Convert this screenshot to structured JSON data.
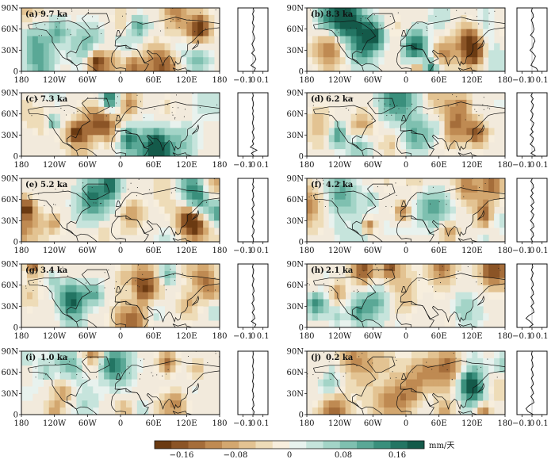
{
  "chart_data": {
    "type": "heatmap",
    "unit_label": "mm/天",
    "map_axes": {
      "x_ticks": [
        "180",
        "120W",
        "60W",
        "0",
        "60E",
        "120E",
        "180"
      ],
      "y_ticks": [
        "0",
        "30N",
        "60N",
        "90N"
      ],
      "xlim": [
        -180,
        180
      ],
      "ylim": [
        0,
        90
      ]
    },
    "profile_axes": {
      "x_ticks": [
        "−0.1",
        "0",
        "0.1"
      ],
      "xlim": [
        -0.15,
        0.15
      ]
    },
    "colorbar": {
      "ticks": [
        "−0.16",
        "−0.08",
        "0",
        "0.08",
        "0.16"
      ],
      "range": [
        -0.2,
        0.2
      ],
      "colors": [
        "#6b3a12",
        "#8b5426",
        "#a56d3a",
        "#bf8a52",
        "#d3a76f",
        "#e3c392",
        "#eedcb8",
        "#f7eedd",
        "#e8f2ee",
        "#c6e4dc",
        "#a3d4c7",
        "#7fc0b0",
        "#5aa896",
        "#3a8f7c",
        "#237563",
        "#145a4a"
      ]
    },
    "panels": [
      {
        "label": "(a)",
        "time": "9.7 ka",
        "seed": 11,
        "profile": [
          0.002,
          0.01,
          -0.004,
          0.008,
          0.003,
          -0.006,
          0.012,
          0.005,
          -0.003,
          0.009,
          0.018,
          0.006,
          -0.01,
          0.004,
          0.015,
          -0.012,
          0.02,
          0.03,
          0.012,
          -0.02,
          0.025,
          0.01
        ]
      },
      {
        "label": "(b)",
        "time": "8.3 ka",
        "seed": 23,
        "profile": [
          0.004,
          -0.006,
          0.01,
          0.015,
          -0.008,
          0.006,
          0.012,
          0.02,
          0.01,
          -0.015,
          0.018,
          0.03,
          0.012,
          0.008,
          -0.02,
          0.01,
          0.035,
          0.022,
          0.005,
          -0.01,
          0.045,
          0.06
        ]
      },
      {
        "label": "(c)",
        "time": "7.3 ka",
        "seed": 37,
        "profile": [
          -0.003,
          0.004,
          -0.008,
          0.002,
          0.006,
          -0.005,
          0.003,
          -0.004,
          0.008,
          0.002,
          -0.006,
          0.004,
          0.01,
          -0.008,
          0.005,
          0.012,
          -0.006,
          0.008,
          -0.025,
          0.04,
          -0.015,
          0.01
        ]
      },
      {
        "label": "(d)",
        "time": "6.2 ka",
        "seed": 41,
        "profile": [
          0.005,
          -0.01,
          0.012,
          -0.008,
          0.015,
          0.006,
          -0.012,
          0.01,
          0.004,
          -0.015,
          0.018,
          0.008,
          -0.01,
          0.012,
          -0.02,
          0.014,
          0.006,
          -0.018,
          0.02,
          0.03,
          -0.01,
          0.04
        ]
      },
      {
        "label": "(e)",
        "time": "5.2 ka",
        "seed": 53,
        "profile": [
          0.002,
          0.006,
          -0.004,
          0.01,
          -0.006,
          0.004,
          0.008,
          -0.008,
          0.006,
          0.012,
          -0.01,
          0.005,
          0.008,
          -0.012,
          0.01,
          0.004,
          -0.006,
          0.012,
          0.008,
          -0.01,
          0.006,
          0.004
        ]
      },
      {
        "label": "(f)",
        "time": "4.2 ka",
        "seed": 67,
        "profile": [
          0.004,
          -0.012,
          0.01,
          0.016,
          -0.008,
          0.012,
          -0.015,
          0.01,
          0.02,
          -0.012,
          0.014,
          -0.01,
          0.018,
          0.006,
          -0.016,
          0.012,
          0.02,
          -0.014,
          0.01,
          0.016,
          -0.01,
          0.006
        ]
      },
      {
        "label": "(g)",
        "time": "3.4 ka",
        "seed": 71,
        "profile": [
          0.003,
          -0.005,
          0.008,
          0.004,
          -0.006,
          0.01,
          0.002,
          -0.008,
          0.006,
          0.012,
          -0.004,
          0.008,
          0.01,
          -0.01,
          0.006,
          0.014,
          -0.008,
          0.012,
          0.02,
          -0.015,
          0.03,
          0.015
        ]
      },
      {
        "label": "(h)",
        "time": "2.1 ka",
        "seed": 83,
        "profile": [
          0.002,
          0.008,
          -0.006,
          0.012,
          0.004,
          -0.01,
          0.008,
          0.014,
          -0.006,
          0.01,
          0.016,
          -0.012,
          0.008,
          0.018,
          -0.01,
          0.012,
          0.02,
          -0.03,
          -0.06,
          -0.02,
          0.01,
          -0.03
        ]
      },
      {
        "label": "(i)",
        "time": "1.0 ka",
        "seed": 97,
        "profile": [
          0.001,
          0.004,
          -0.003,
          0.006,
          0.002,
          -0.004,
          0.005,
          -0.002,
          0.006,
          0.003,
          -0.005,
          0.007,
          0.002,
          -0.006,
          0.004,
          0.008,
          -0.004,
          0.006,
          0.01,
          -0.008,
          0.012,
          0.006
        ]
      },
      {
        "label": "(j)",
        "time": "0.2 ka",
        "seed": 103,
        "profile": [
          0.003,
          -0.006,
          0.008,
          -0.004,
          0.006,
          0.01,
          -0.008,
          0.006,
          0.012,
          -0.006,
          0.008,
          0.014,
          -0.01,
          0.006,
          0.016,
          -0.012,
          0.01,
          0.02,
          -0.03,
          -0.06,
          -0.04,
          0.015
        ]
      }
    ]
  }
}
